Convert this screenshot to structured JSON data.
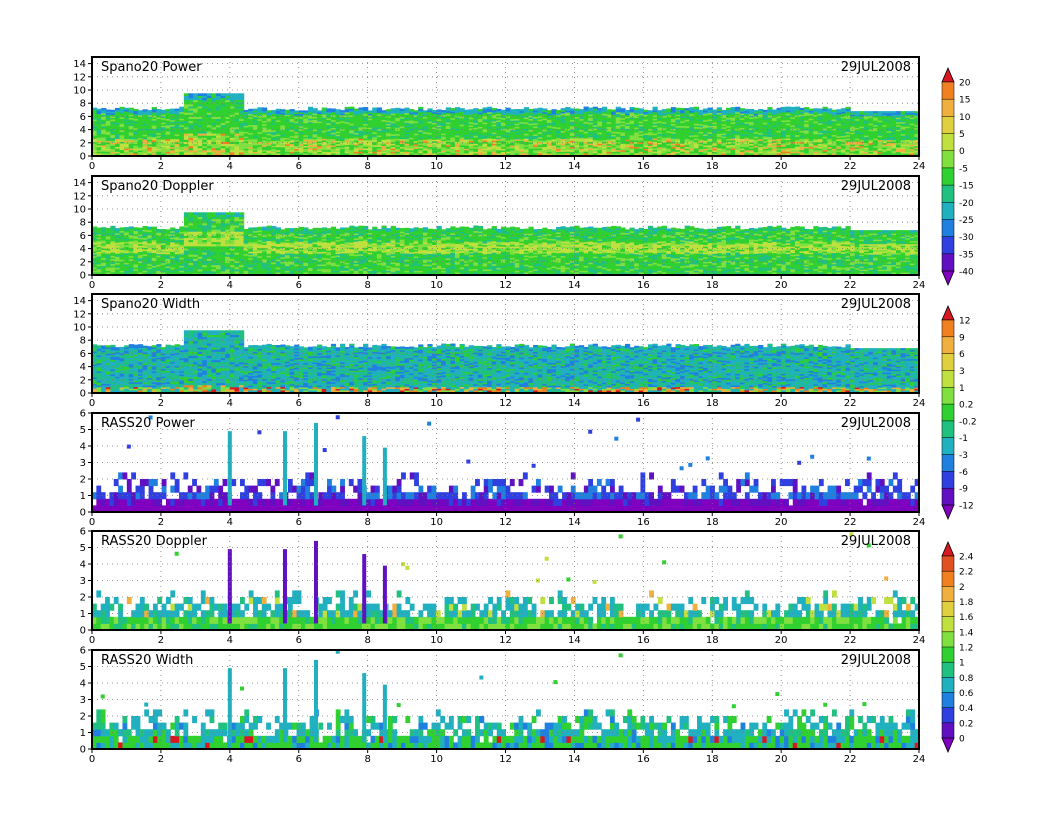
{
  "chart_data": {
    "type": "heatmap",
    "date_label": "29JUL2008",
    "x_range": [
      0,
      24
    ],
    "x_ticks": [
      "0",
      "2",
      "4",
      "6",
      "8",
      "10",
      "12",
      "14",
      "16",
      "18",
      "20",
      "22",
      "24"
    ],
    "panels": [
      {
        "title": "Spano20  Power",
        "y_range": [
          0,
          15
        ],
        "y_ticks": [
          "0",
          "2",
          "4",
          "6",
          "8",
          "10",
          "12",
          "14"
        ],
        "colorbar": 0
      },
      {
        "title": "Spano20  Doppler",
        "y_range": [
          0,
          15
        ],
        "y_ticks": [
          "0",
          "2",
          "4",
          "6",
          "8",
          "10",
          "12",
          "14"
        ],
        "colorbar": null
      },
      {
        "title": "Spano20  Width",
        "y_range": [
          0,
          15
        ],
        "y_ticks": [
          "0",
          "2",
          "4",
          "6",
          "8",
          "10",
          "12",
          "14"
        ],
        "colorbar": 1
      },
      {
        "title": "RASS20  Power",
        "y_range": [
          0,
          6
        ],
        "y_ticks": [
          "0",
          "1",
          "2",
          "3",
          "4",
          "5",
          "6"
        ],
        "colorbar": null
      },
      {
        "title": "RASS20  Doppler",
        "y_range": [
          0,
          6
        ],
        "y_ticks": [
          "0",
          "1",
          "2",
          "3",
          "4",
          "5",
          "6"
        ],
        "colorbar": 2
      },
      {
        "title": "RASS20  Width",
        "y_range": [
          0,
          6
        ],
        "y_ticks": [
          "0",
          "1",
          "2",
          "3",
          "4",
          "5",
          "6"
        ],
        "colorbar": null
      }
    ],
    "colorbars": [
      {
        "labels": [
          "20",
          "15",
          "10",
          "5",
          "0",
          "-5",
          "-15",
          "-20",
          "-25",
          "-30",
          "-35",
          "-40"
        ],
        "colors": [
          "#d81820",
          "#f08020",
          "#f0b040",
          "#e0d040",
          "#c0e040",
          "#80e040",
          "#30d030",
          "#20c080",
          "#20b0c0",
          "#2080e0",
          "#3040e0",
          "#6010c0",
          "#8000c0"
        ]
      },
      {
        "labels": [
          "12",
          "9",
          "6",
          "3",
          "1",
          "0.2",
          "-0.2",
          "-1",
          "-3",
          "-6",
          "-9",
          "-12"
        ],
        "colors": [
          "#d81820",
          "#f08020",
          "#f0b040",
          "#e0d040",
          "#c0e040",
          "#80e040",
          "#30d030",
          "#20c080",
          "#20b0c0",
          "#2080e0",
          "#3040e0",
          "#6010c0",
          "#8000c0"
        ]
      },
      {
        "labels": [
          "2.4",
          "2.2",
          "2",
          "1.8",
          "1.6",
          "1.4",
          "1.2",
          "1",
          "0.8",
          "0.6",
          "0.4",
          "0.2",
          "0"
        ],
        "colors": [
          "#d81820",
          "#e05020",
          "#f08020",
          "#f0b040",
          "#e0d040",
          "#c0e040",
          "#80e040",
          "#30d030",
          "#20c080",
          "#20b0c0",
          "#2080e0",
          "#3040e0",
          "#6010c0",
          "#8000c0"
        ]
      }
    ]
  }
}
